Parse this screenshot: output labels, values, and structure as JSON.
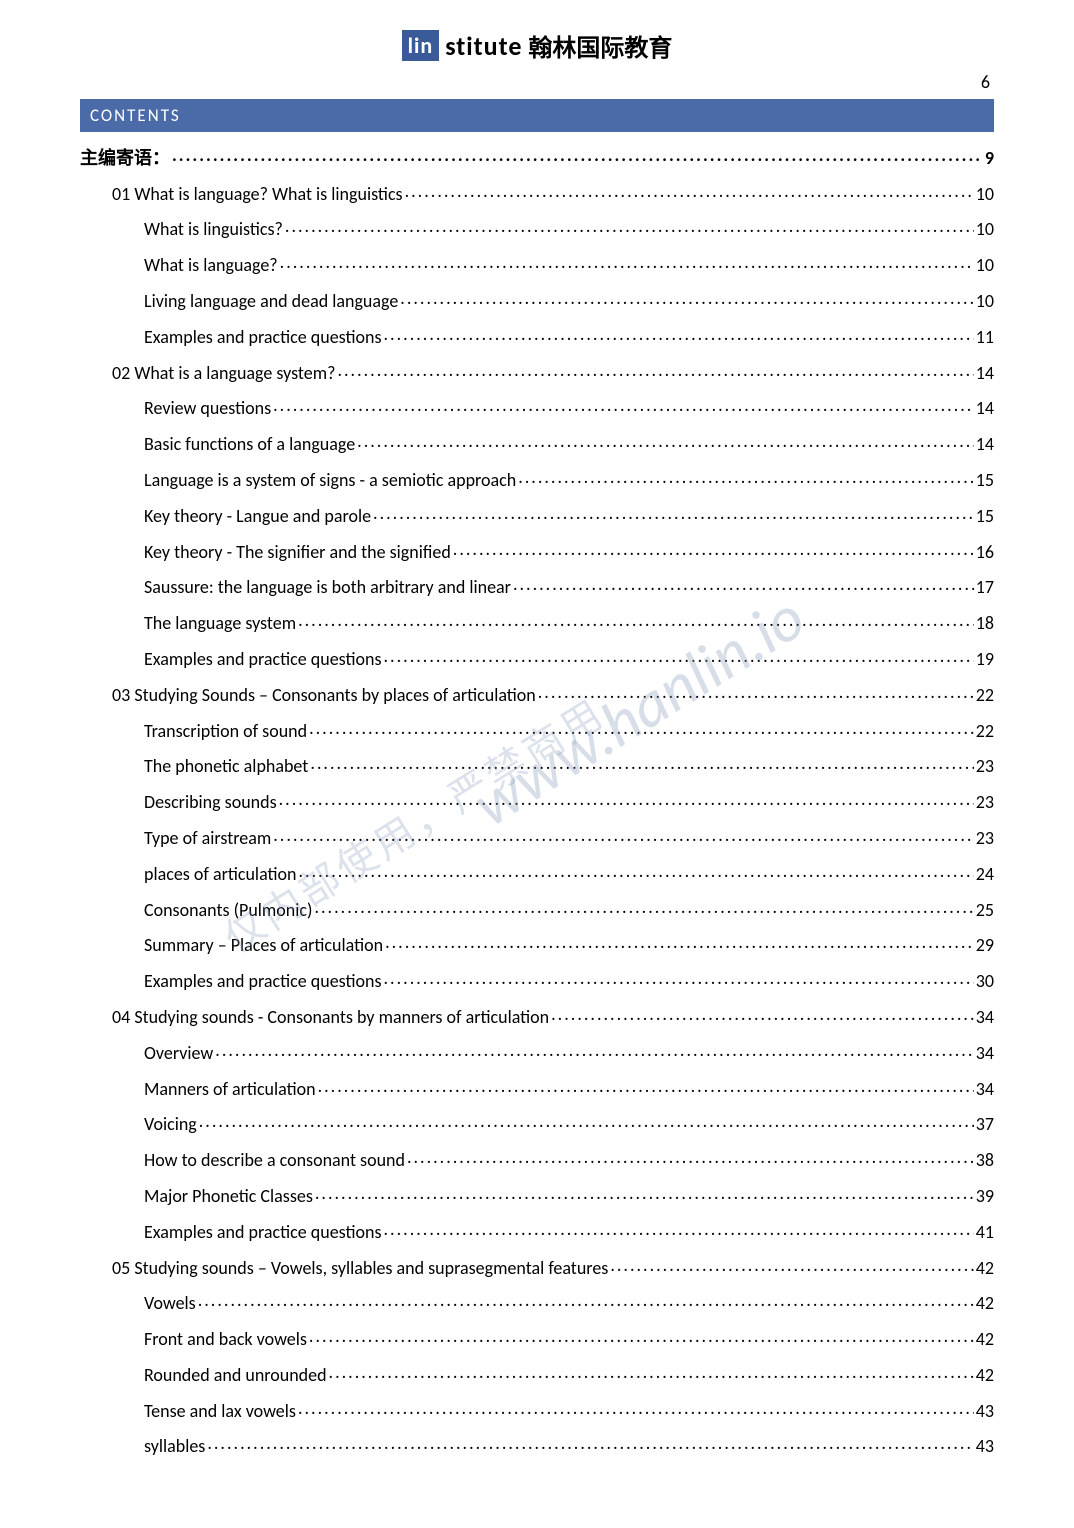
{
  "header": {
    "logo_prefix": "lin",
    "logo_suffix": "stitute",
    "logo_cn": "翰林国际教育",
    "page_number": "6",
    "contents_label": "CONTENTS"
  },
  "watermark": {
    "url": "www.hanlin.io",
    "cn": "仅内部使用，严禁商用"
  },
  "colors": {
    "bar_bg": "#4a6aa8",
    "bar_text": "#ffffff",
    "text": "#000000",
    "watermark": "rgba(140,160,190,0.35)"
  },
  "toc": [
    {
      "level": 0,
      "title": "主编寄语：",
      "page": "9",
      "bold": true
    },
    {
      "level": 1,
      "title": "01 What is language? What is linguistics",
      "page": "10"
    },
    {
      "level": 2,
      "title": "What is linguistics?",
      "page": "10"
    },
    {
      "level": 2,
      "title": "What is language?",
      "page": "10"
    },
    {
      "level": 2,
      "title": "Living language and dead language",
      "page": "10"
    },
    {
      "level": 2,
      "title": "Examples and practice questions",
      "page": "11"
    },
    {
      "level": 1,
      "title": "02 What is a language system?",
      "page": "14"
    },
    {
      "level": 2,
      "title": "Review questions",
      "page": "14"
    },
    {
      "level": 2,
      "title": "Basic functions of a language",
      "page": "14"
    },
    {
      "level": 2,
      "title": "Language is a system of signs - a semiotic approach",
      "page": "15"
    },
    {
      "level": 2,
      "title": "Key theory - Langue and parole",
      "page": "15"
    },
    {
      "level": 2,
      "title": "Key theory - The signifier and the signified",
      "page": "16"
    },
    {
      "level": 2,
      "title": "Saussure: the language is both arbitrary and linear",
      "page": "17"
    },
    {
      "level": 2,
      "title": "The language system",
      "page": "18"
    },
    {
      "level": 2,
      "title": "Examples and practice questions",
      "page": "19"
    },
    {
      "level": 1,
      "title": "03 Studying Sounds – Consonants by places of articulation",
      "page": "22"
    },
    {
      "level": 2,
      "title": "Transcription of sound",
      "page": "22"
    },
    {
      "level": 2,
      "title": "The phonetic alphabet",
      "page": "23"
    },
    {
      "level": 2,
      "title": "Describing sounds",
      "page": "23"
    },
    {
      "level": 2,
      "title": "Type of airstream",
      "page": "23"
    },
    {
      "level": 2,
      "title": "places of articulation",
      "page": "24"
    },
    {
      "level": 2,
      "title": "Consonants (Pulmonic)",
      "page": "25"
    },
    {
      "level": 2,
      "title": "Summary – Places of articulation",
      "page": "29"
    },
    {
      "level": 2,
      "title": "Examples and practice questions",
      "page": "30"
    },
    {
      "level": 1,
      "title": "04 Studying sounds - Consonants by manners of articulation",
      "page": "34"
    },
    {
      "level": 2,
      "title": "Overview",
      "page": "34"
    },
    {
      "level": 2,
      "title": "Manners of articulation",
      "page": "34"
    },
    {
      "level": 2,
      "title": "Voicing",
      "page": "37"
    },
    {
      "level": 2,
      "title": "How to describe a consonant sound",
      "page": "38"
    },
    {
      "level": 2,
      "title": "Major Phonetic Classes",
      "page": "39"
    },
    {
      "level": 2,
      "title": "Examples and practice questions",
      "page": "41"
    },
    {
      "level": 1,
      "title": "05 Studying sounds – Vowels, syllables and suprasegmental features",
      "page": "42"
    },
    {
      "level": 2,
      "title": "Vowels",
      "page": "42"
    },
    {
      "level": 2,
      "title": "Front and back vowels",
      "page": "42"
    },
    {
      "level": 2,
      "title": "Rounded and unrounded",
      "page": "42"
    },
    {
      "level": 2,
      "title": "Tense and lax vowels",
      "page": "43"
    },
    {
      "level": 2,
      "title": "syllables",
      "page": "43"
    }
  ]
}
